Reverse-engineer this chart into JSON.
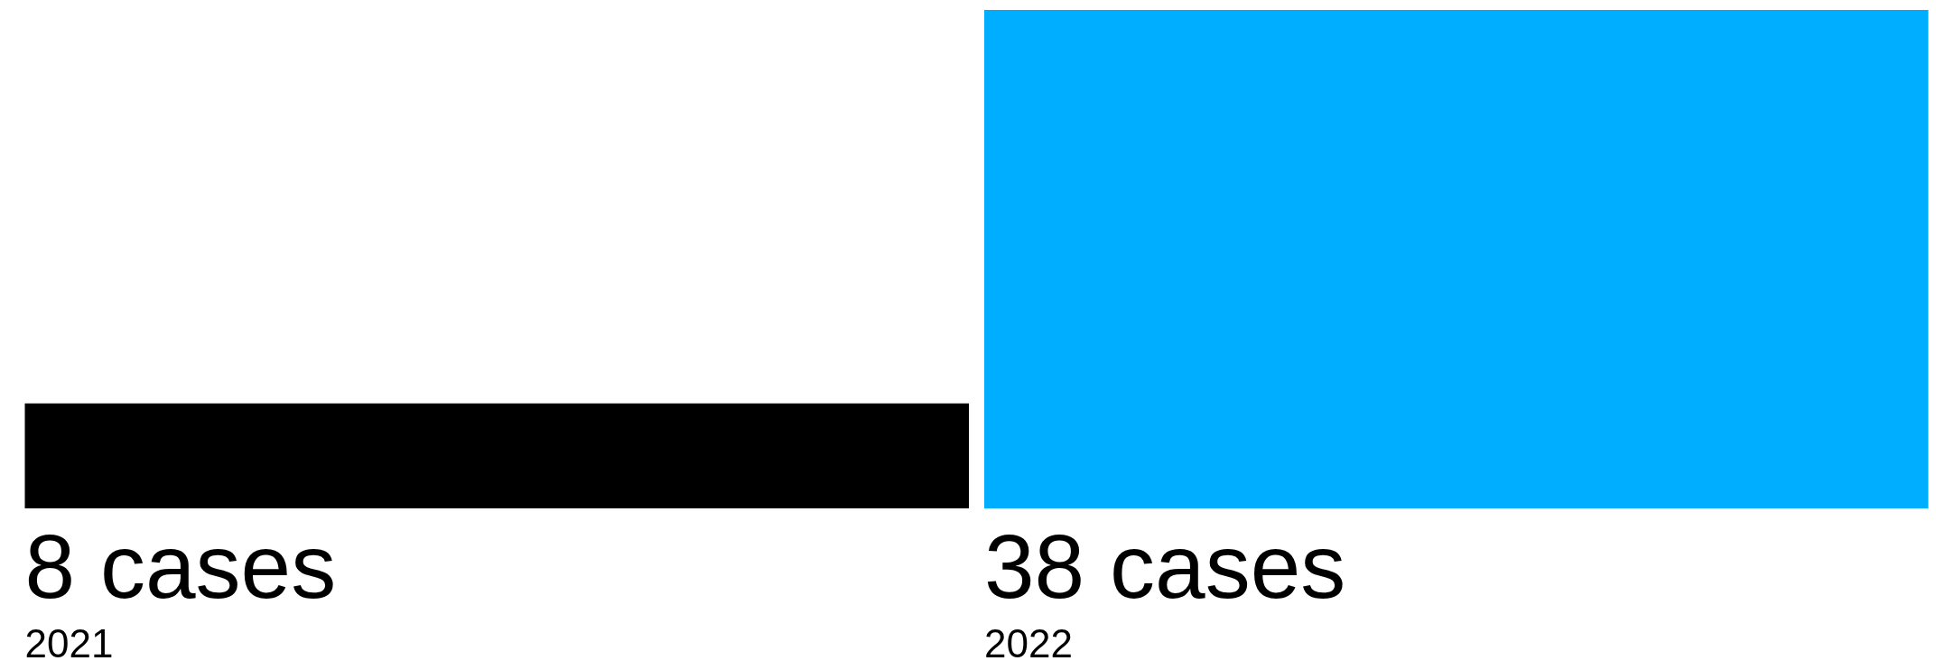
{
  "chart_data": {
    "type": "bar",
    "categories": [
      "2021",
      "2022"
    ],
    "values": [
      8,
      38
    ],
    "colors": [
      "#000000",
      "#00aeff"
    ],
    "value_labels": [
      "8 cases",
      "38 cases"
    ]
  }
}
